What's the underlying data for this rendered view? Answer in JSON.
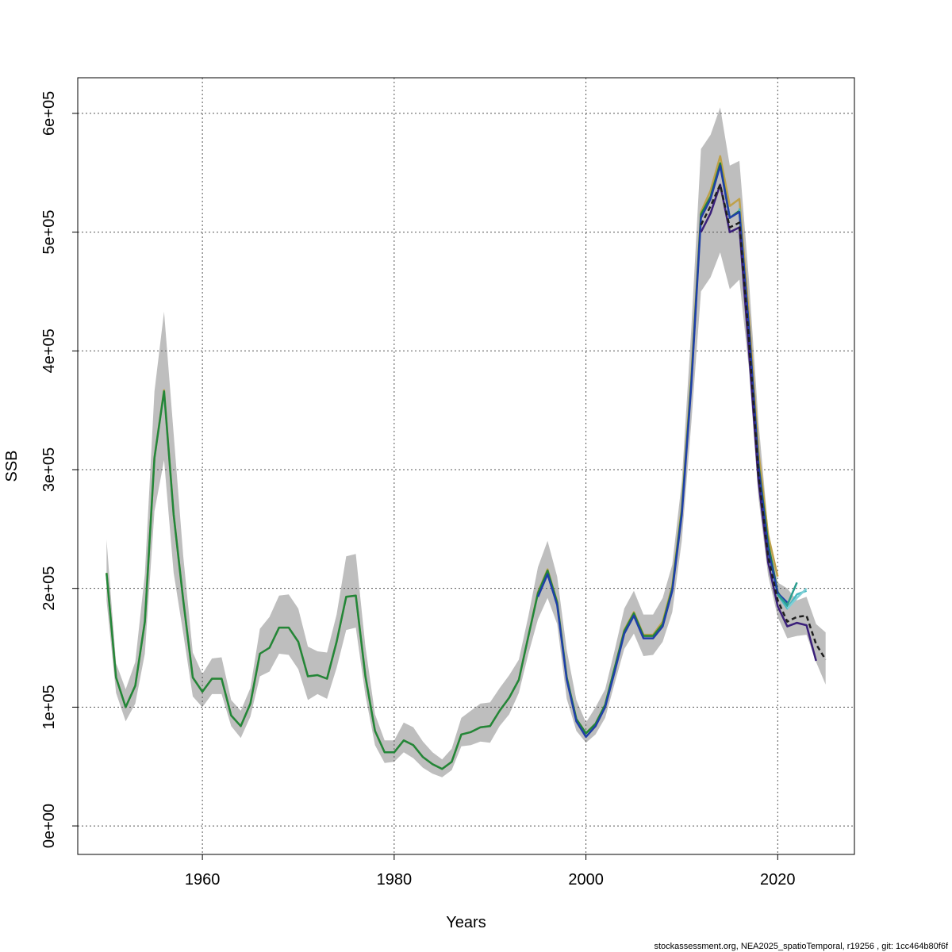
{
  "chart_data": {
    "type": "line",
    "title": "",
    "xlabel": "Years",
    "ylabel": "SSB",
    "xlim": [
      1947,
      2028
    ],
    "ylim": [
      -24000,
      630000
    ],
    "x_ticks": [
      1960,
      1980,
      2000,
      2020
    ],
    "x_tick_labels": [
      "1960",
      "1980",
      "2000",
      "2020"
    ],
    "y_ticks": [
      0,
      100000,
      200000,
      300000,
      400000,
      500000,
      600000
    ],
    "y_tick_labels": [
      "0e+00",
      "1e+05",
      "2e+05",
      "3e+05",
      "4e+05",
      "5e+05",
      "6e+05"
    ],
    "grid": true,
    "footer": "stockassessment.org, NEA2025_spatioTemporal, r19256 , git: 1cc464b80f6f",
    "colors": {
      "band": "#bebebe",
      "main": "#1f1f1f",
      "grid": "#555555",
      "series_colors": [
        "#bfa14a",
        "#22863a",
        "#46b9c1",
        "#1f3fa8",
        "#3a1f7a",
        "#2a9d8f",
        "#7ecfd6"
      ]
    },
    "band": {
      "x": [
        1950,
        1951,
        1952,
        1953,
        1954,
        1955,
        1956,
        1957,
        1958,
        1959,
        1960,
        1961,
        1962,
        1963,
        1964,
        1965,
        1966,
        1967,
        1968,
        1969,
        1970,
        1971,
        1972,
        1973,
        1974,
        1975,
        1976,
        1977,
        1978,
        1979,
        1980,
        1981,
        1982,
        1983,
        1984,
        1985,
        1986,
        1987,
        1988,
        1989,
        1990,
        1991,
        1992,
        1993,
        1994,
        1995,
        1996,
        1997,
        1998,
        1999,
        2000,
        2001,
        2002,
        2003,
        2004,
        2005,
        2006,
        2007,
        2008,
        2009,
        2010,
        2011,
        2012,
        2013,
        2014,
        2015,
        2016,
        2017,
        2018,
        2019,
        2020,
        2021,
        2022,
        2023,
        2024,
        2025
      ],
      "lower": [
        190000,
        112000,
        88000,
        103000,
        145000,
        265000,
        308000,
        213000,
        162000,
        109000,
        100000,
        111000,
        111000,
        84000,
        74000,
        92000,
        126000,
        130000,
        145000,
        144000,
        132000,
        106000,
        111000,
        107000,
        133000,
        165000,
        167000,
        110000,
        68000,
        53000,
        54000,
        62000,
        57000,
        49000,
        44000,
        41000,
        47000,
        67000,
        68000,
        71000,
        70000,
        84000,
        94000,
        112000,
        145000,
        174000,
        192000,
        170000,
        107000,
        80000,
        70000,
        77000,
        91000,
        120000,
        149000,
        162000,
        143000,
        144000,
        155000,
        180000,
        240000,
        340000,
        450000,
        462000,
        483000,
        452000,
        460000,
        385000,
        276000,
        211000,
        176000,
        158000,
        160000,
        161000,
        138000,
        119000
      ],
      "upper": [
        241000,
        137000,
        115000,
        138000,
        212000,
        366000,
        433000,
        330000,
        227000,
        146000,
        128000,
        141000,
        142000,
        106000,
        97000,
        116000,
        166000,
        176000,
        194000,
        195000,
        183000,
        151000,
        147000,
        146000,
        178000,
        227000,
        229000,
        151000,
        94000,
        72000,
        72000,
        87000,
        83000,
        71000,
        62000,
        56000,
        65000,
        91000,
        97000,
        103000,
        104000,
        116000,
        127000,
        140000,
        177000,
        218000,
        240000,
        210000,
        148000,
        106000,
        87000,
        100000,
        115000,
        148000,
        183000,
        198000,
        178000,
        178000,
        192000,
        220000,
        290000,
        420000,
        570000,
        582000,
        605000,
        556000,
        560000,
        460000,
        340000,
        250000,
        205000,
        200000,
        190000,
        193000,
        170000,
        163000
      ],
      "name": ""
    },
    "series": [
      {
        "x": [
          1950,
          1951,
          1952,
          1953,
          1954,
          1955,
          1956,
          1957,
          1958,
          1959,
          1960,
          1961,
          1962,
          1963,
          1964,
          1965,
          1966,
          1967,
          1968,
          1969,
          1970,
          1971,
          1972,
          1973,
          1974,
          1975,
          1976,
          1977,
          1978,
          1979,
          1980,
          1981,
          1982,
          1983,
          1984,
          1985,
          1986,
          1987,
          1988,
          1989,
          1990,
          1991,
          1992,
          1993,
          1994,
          1995,
          1996,
          1997,
          1998,
          1999,
          2000,
          2001,
          2002,
          2003,
          2004,
          2005,
          2006,
          2007,
          2008,
          2009,
          2010,
          2011,
          2012,
          2013,
          2014,
          2015,
          2016,
          2017,
          2018,
          2019,
          2020
        ],
        "values": [
          213000,
          125000,
          100000,
          118000,
          172000,
          310000,
          367000,
          262000,
          190000,
          125000,
          113000,
          124000,
          124000,
          93000,
          84000,
          103000,
          145000,
          150000,
          167000,
          167000,
          155000,
          126000,
          127000,
          124000,
          155000,
          193000,
          194000,
          126000,
          80000,
          62000,
          62000,
          72000,
          68000,
          58000,
          52000,
          48000,
          54000,
          77000,
          79000,
          83000,
          84000,
          97000,
          108000,
          123000,
          160000,
          197000,
          216000,
          189000,
          125000,
          90000,
          78000,
          86000,
          102000,
          133000,
          165000,
          180000,
          161000,
          161000,
          172000,
          202000,
          268000,
          380000,
          517000,
          535000,
          564000,
          522000,
          528000,
          430000,
          315000,
          245000,
          210000
        ]
      },
      {
        "x": [
          1950,
          1951,
          1952,
          1953,
          1954,
          1955,
          1956,
          1957,
          1958,
          1959,
          1960,
          1961,
          1962,
          1963,
          1964,
          1965,
          1966,
          1967,
          1968,
          1969,
          1970,
          1971,
          1972,
          1973,
          1974,
          1975,
          1976,
          1977,
          1978,
          1979,
          1980,
          1981,
          1982,
          1983,
          1984,
          1985,
          1986,
          1987,
          1988,
          1989,
          1990,
          1991,
          1992,
          1993,
          1994,
          1995,
          1996,
          1997,
          1998,
          1999,
          2000,
          2001,
          2002,
          2003,
          2004,
          2005,
          2006,
          2007,
          2008,
          2009,
          2010,
          2011,
          2012,
          2013,
          2014,
          2015,
          2016,
          2017,
          2018,
          2019,
          2020,
          2021
        ],
        "values": [
          213000,
          125000,
          100000,
          118000,
          172000,
          310000,
          366000,
          262000,
          190000,
          125000,
          113000,
          124000,
          124000,
          93000,
          84000,
          103000,
          145000,
          150000,
          167000,
          167000,
          155000,
          126000,
          127000,
          124000,
          155000,
          193000,
          194000,
          126000,
          80000,
          62000,
          62000,
          72000,
          68000,
          58000,
          52000,
          48000,
          54000,
          77000,
          79000,
          83000,
          84000,
          97000,
          108000,
          123000,
          160000,
          196000,
          215000,
          188000,
          125000,
          90000,
          78000,
          86000,
          102000,
          133000,
          164000,
          179000,
          160000,
          160000,
          170000,
          200000,
          265000,
          375000,
          515000,
          530000,
          558000,
          512000,
          518000,
          420000,
          305000,
          238000,
          197000,
          184000
        ]
      },
      {
        "x": [
          2016,
          2017,
          2018,
          2019,
          2020,
          2021,
          2022,
          2023
        ],
        "values": [
          520000,
          415000,
          300000,
          232000,
          195000,
          183000,
          195000,
          198000
        ]
      },
      {
        "x": [
          1995,
          1996,
          1997,
          1998,
          1999,
          2000,
          2001,
          2002,
          2003,
          2004,
          2005,
          2006,
          2007,
          2008,
          2009,
          2010,
          2011,
          2012,
          2013,
          2014,
          2015,
          2016,
          2017,
          2018,
          2019,
          2020,
          2021
        ],
        "values": [
          193000,
          212000,
          186000,
          123000,
          88000,
          75000,
          84000,
          100000,
          130000,
          162000,
          177000,
          158000,
          158000,
          168000,
          198000,
          262000,
          372000,
          512000,
          528000,
          556000,
          512000,
          517000,
          420000,
          303000,
          233000,
          196000,
          188000
        ]
      },
      {
        "x": [
          2012,
          2013,
          2014,
          2015,
          2016,
          2017,
          2018,
          2019,
          2020,
          2021,
          2022,
          2023,
          2024
        ],
        "values": [
          500000,
          516000,
          540000,
          500000,
          504000,
          400000,
          290000,
          222000,
          185000,
          168000,
          171000,
          169000,
          139000
        ]
      },
      {
        "x": [
          2020,
          2021,
          2022
        ],
        "values": [
          195000,
          186000,
          205000
        ]
      },
      {
        "x": [
          2021,
          2022,
          2023
        ],
        "values": [
          183000,
          192000,
          200000
        ]
      }
    ],
    "main_dashed": {
      "x": [
        2012,
        2013,
        2014,
        2015,
        2016,
        2017,
        2018,
        2019,
        2020,
        2021,
        2022,
        2023,
        2024,
        2025
      ],
      "values": [
        506000,
        522000,
        540000,
        504000,
        508000,
        410000,
        296000,
        227000,
        190000,
        172000,
        176000,
        177000,
        153000,
        140000
      ]
    }
  }
}
